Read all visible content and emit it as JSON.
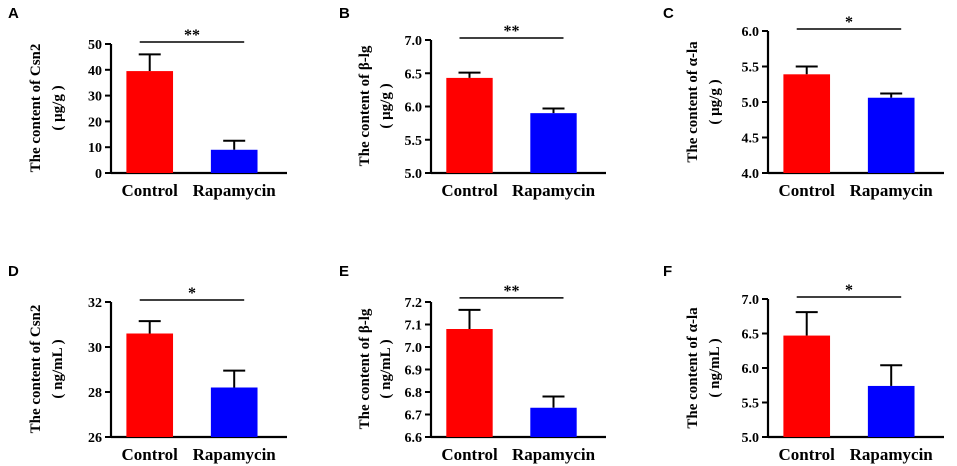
{
  "colors": {
    "control": "#ff0000",
    "treatment": "#0000ff",
    "axis": "#000000"
  },
  "chart_data": [
    {
      "panel": "A",
      "type": "bar",
      "categories": [
        "Control",
        "Rapamycin"
      ],
      "values": [
        39.5,
        9.0
      ],
      "errors": [
        6.5,
        3.5
      ],
      "ylabel": "The content of Csn2",
      "yunit": "( μg/g )",
      "ylim": [
        0,
        50
      ],
      "yticks": [
        0,
        10,
        20,
        30,
        40,
        50
      ],
      "tick_labels": [
        "0",
        "10",
        "20",
        "30",
        "40",
        "50"
      ],
      "significance": "**"
    },
    {
      "panel": "B",
      "type": "bar",
      "categories": [
        "Control",
        "Rapamycin"
      ],
      "values": [
        6.43,
        5.9
      ],
      "errors": [
        0.08,
        0.07
      ],
      "ylabel": "The content of β-lg",
      "yunit": "( μg/g )",
      "ylim": [
        5.0,
        7.0
      ],
      "yticks": [
        5.0,
        5.5,
        6.0,
        6.5,
        7.0
      ],
      "tick_labels": [
        "5.0",
        "5.5",
        "6.0",
        "6.5",
        "7.0"
      ],
      "significance": "**"
    },
    {
      "panel": "C",
      "type": "bar",
      "categories": [
        "Control",
        "Rapamycin"
      ],
      "values": [
        5.39,
        5.06
      ],
      "errors": [
        0.11,
        0.06
      ],
      "ylabel": "The content of α-la",
      "yunit": "( μg/g )",
      "ylim": [
        4.0,
        6.0
      ],
      "yticks": [
        4.0,
        4.5,
        5.0,
        5.5,
        6.0
      ],
      "tick_labels": [
        "4.0",
        "4.5",
        "5.0",
        "5.5",
        "6.0"
      ],
      "significance": "*"
    },
    {
      "panel": "D",
      "type": "bar",
      "categories": [
        "Control",
        "Rapamycin"
      ],
      "values": [
        30.6,
        28.2
      ],
      "errors": [
        0.55,
        0.75
      ],
      "ylabel": "The content of Csn2",
      "yunit": "( ng/mL )",
      "ylim": [
        26,
        32
      ],
      "yticks": [
        26,
        28,
        30,
        32
      ],
      "tick_labels": [
        "26",
        "28",
        "30",
        "32"
      ],
      "significance": "*"
    },
    {
      "panel": "E",
      "type": "bar",
      "categories": [
        "Control",
        "Rapamycin"
      ],
      "values": [
        7.08,
        6.73
      ],
      "errors": [
        0.085,
        0.05
      ],
      "ylabel": "The content of β-lg",
      "yunit": "( ng/mL )",
      "ylim": [
        6.6,
        7.2
      ],
      "yticks": [
        6.6,
        6.7,
        6.8,
        6.9,
        7.0,
        7.1,
        7.2
      ],
      "tick_labels": [
        "6.6",
        "6.7",
        "6.8",
        "6.9",
        "7.0",
        "7.1",
        "7.2"
      ],
      "significance": "**"
    },
    {
      "panel": "F",
      "type": "bar",
      "categories": [
        "Control",
        "Rapamycin"
      ],
      "values": [
        6.47,
        5.74
      ],
      "errors": [
        0.34,
        0.3
      ],
      "ylabel": "The content of α-la",
      "yunit": "( ng/mL )",
      "ylim": [
        5.0,
        7.0
      ],
      "yticks": [
        5.0,
        5.5,
        6.0,
        6.5,
        7.0
      ],
      "tick_labels": [
        "5.0",
        "5.5",
        "6.0",
        "6.5",
        "7.0"
      ],
      "significance": "*"
    }
  ]
}
